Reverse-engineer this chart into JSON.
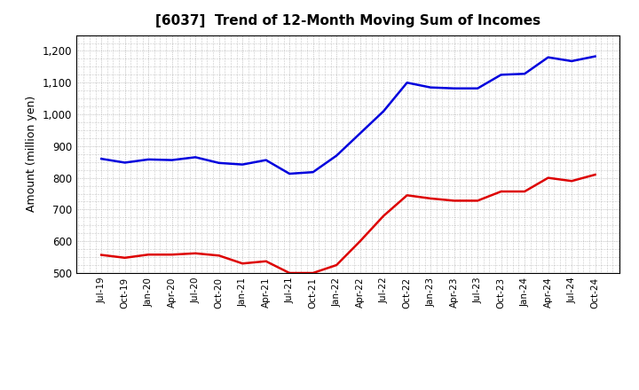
{
  "title": "[6037]  Trend of 12-Month Moving Sum of Incomes",
  "ylabel": "Amount (million yen)",
  "background_color": "#ffffff",
  "grid_color": "#999999",
  "ylim": [
    500,
    1250
  ],
  "yticks": [
    500,
    600,
    700,
    800,
    900,
    1000,
    1100,
    1200
  ],
  "ytick_labels": [
    "500",
    "600",
    "700",
    "800",
    "900",
    "1,000",
    "1,100",
    "1,200"
  ],
  "labels": [
    "Jul-19",
    "Oct-19",
    "Jan-20",
    "Apr-20",
    "Jul-20",
    "Oct-20",
    "Jan-21",
    "Apr-21",
    "Jul-21",
    "Oct-21",
    "Jan-22",
    "Apr-22",
    "Jul-22",
    "Oct-22",
    "Jan-23",
    "Apr-23",
    "Jul-23",
    "Oct-23",
    "Jan-24",
    "Apr-24",
    "Jul-24",
    "Oct-24"
  ],
  "ordinary_income": [
    860,
    848,
    858,
    856,
    865,
    847,
    842,
    856,
    813,
    818,
    870,
    940,
    1010,
    1100,
    1085,
    1082,
    1082,
    1125,
    1128,
    1180,
    1168,
    1183
  ],
  "net_income": [
    557,
    548,
    558,
    558,
    562,
    555,
    530,
    537,
    500,
    500,
    525,
    600,
    680,
    745,
    735,
    728,
    728,
    757,
    757,
    800,
    790,
    810
  ],
  "ordinary_color": "#0000dd",
  "net_color": "#dd0000",
  "line_width": 1.8,
  "minor_grid_divisions": 4
}
